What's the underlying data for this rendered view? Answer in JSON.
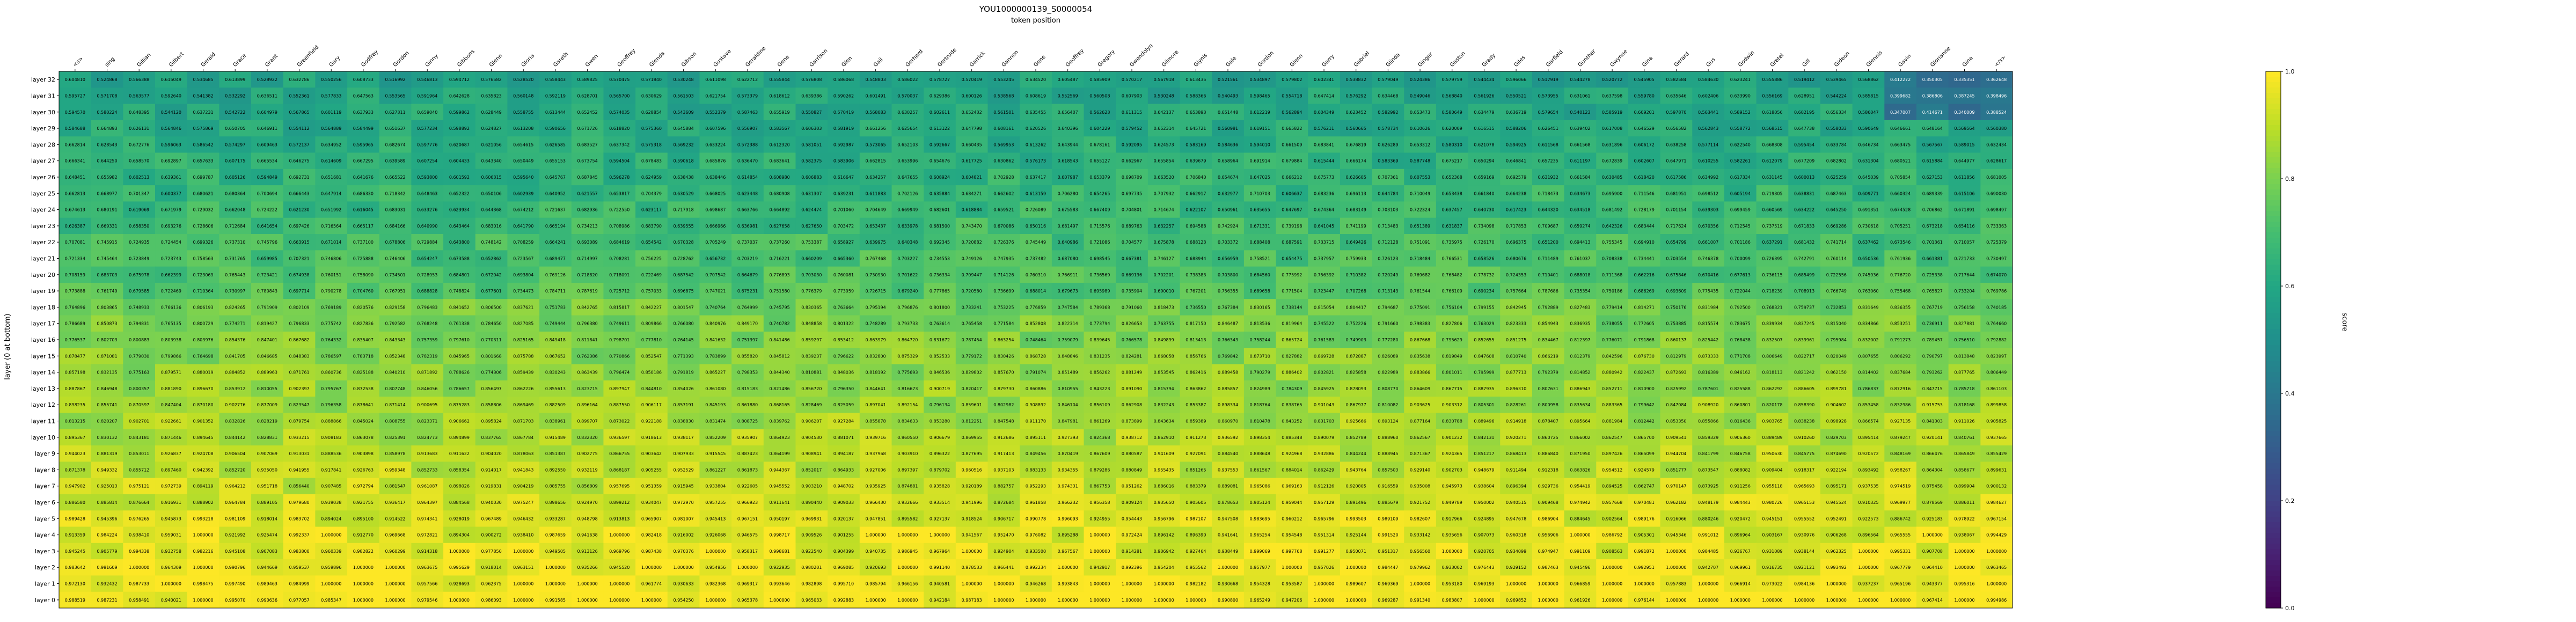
{
  "chart_data": {
    "type": "heatmap",
    "title": "YOU1000000139_S0000054",
    "xlabel": "token position",
    "ylabel": "layer (0 at bottom)",
    "colorbar_label": "score",
    "colorbar_ticks": [
      "0.0",
      "0.2",
      "0.4",
      "0.6",
      "0.8",
      "1.0"
    ],
    "value_range": [
      0,
      1
    ],
    "colormap": "viridis",
    "x_tick_labels": [
      "<s>",
      "sing",
      "Gillian",
      "Gilbert",
      "Gerald",
      "Grace",
      "Grant",
      "Greenfield",
      "Gary",
      "Godfrey",
      "Gordon",
      "Ginny",
      "Gibbons",
      "Glenn",
      "Gloria",
      "Gareth",
      "Gwen",
      "Geoffrey",
      "Glenda",
      "Gibson",
      "Gustave",
      "Geraldine",
      "Gene",
      "Garrison",
      "Glen",
      "Gail",
      "Gerhard",
      "Gertrude",
      "Garrick",
      "Gannon",
      "Gene",
      "Geoffrey",
      "Gregory",
      "Gwendolyn",
      "Gilmore",
      "Glynis",
      "Gale",
      "Gordon",
      "Glenn",
      "Garry",
      "Gabriel",
      "Glinda",
      "Ginger",
      "Gaston",
      "Grady",
      "Giles",
      "Garfield",
      "Gunther",
      "Gwynne",
      "Gina",
      "Gerard",
      "Gus",
      "Godwin",
      "Gretel",
      "Gill",
      "Gideon",
      "Glennis",
      "Gavin",
      "Glorianne",
      "Gina",
      "</s>"
    ],
    "y_tick_labels": [
      "layer 32",
      "layer 31",
      "layer 30",
      "layer 29",
      "layer 28",
      "layer 27",
      "layer 26",
      "layer 25",
      "layer 24",
      "layer 23",
      "layer 22",
      "layer 21",
      "layer 20",
      "layer 19",
      "layer 18",
      "layer 17",
      "layer 16",
      "layer 15",
      "layer 14",
      "layer 13",
      "layer 12",
      "layer 11",
      "layer 10",
      "layer 9",
      "layer 8",
      "layer 7",
      "layer 6",
      "layer 5",
      "layer 4",
      "layer 3",
      "layer 2",
      "layer 1",
      "layer 0"
    ],
    "rows_generated": {
      "note_ref": "values indexed row-major, top row = layer 32",
      "values": []
    }
  }
}
